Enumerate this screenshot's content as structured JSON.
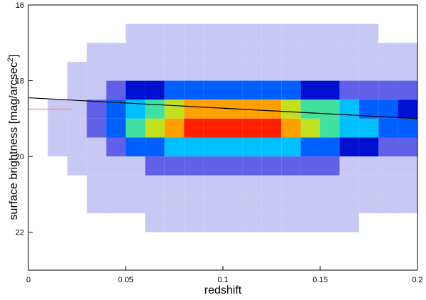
{
  "chart_data": {
    "type": "heatmap",
    "xlabel": "redshift",
    "ylabel": {
      "text": "surface brightness [mag/arcsec",
      "sup": "2",
      "end": "]"
    },
    "xlim": [
      0,
      0.2
    ],
    "ylim": [
      16,
      23
    ],
    "y_inverted": true,
    "xticks": [
      0,
      0.05,
      0.1,
      0.15,
      0.2
    ],
    "yticks": [
      16,
      18,
      20,
      22
    ],
    "xbins": [
      0,
      0.01,
      0.02,
      0.03,
      0.04,
      0.05,
      0.06,
      0.07,
      0.08,
      0.09,
      0.1,
      0.11,
      0.12,
      0.13,
      0.14,
      0.15,
      0.16,
      0.17,
      0.18,
      0.19,
      0.2
    ],
    "ybins": [
      16,
      16.5,
      17,
      17.5,
      18,
      18.5,
      19,
      19.5,
      20,
      20.5,
      21,
      21.5,
      22,
      22.5,
      23
    ],
    "z": [
      [
        0,
        0,
        0,
        0,
        0,
        0,
        0,
        0,
        0,
        0,
        0,
        0,
        0,
        0,
        0,
        0,
        0,
        0,
        0,
        0
      ],
      [
        0,
        0,
        0,
        0,
        0,
        1,
        1,
        1,
        1,
        1,
        1,
        1,
        1,
        1,
        1,
        1,
        1,
        1,
        0,
        0
      ],
      [
        0,
        0,
        0,
        1,
        2,
        3,
        3,
        4,
        4,
        4,
        4,
        4,
        4,
        4,
        3,
        3,
        2,
        2,
        2,
        2
      ],
      [
        0,
        0,
        1,
        3,
        7,
        10,
        12,
        14,
        14,
        15,
        15,
        15,
        14,
        14,
        12,
        11,
        9,
        8,
        7,
        6
      ],
      [
        0,
        0,
        2,
        9,
        20,
        29,
        36,
        41,
        43,
        45,
        45,
        44,
        43,
        41,
        36,
        32,
        27,
        23,
        20,
        18
      ],
      [
        0,
        1,
        5,
        18,
        41,
        59,
        72,
        81,
        86,
        90,
        90,
        88,
        86,
        81,
        72,
        63,
        54,
        45,
        41,
        36
      ],
      [
        0,
        1,
        5,
        20,
        45,
        65,
        80,
        90,
        95,
        100,
        100,
        98,
        95,
        90,
        80,
        70,
        60,
        50,
        45,
        40
      ],
      [
        0,
        1,
        3,
        12,
        27,
        39,
        48,
        54,
        57,
        60,
        60,
        59,
        57,
        54,
        48,
        42,
        36,
        30,
        27,
        24
      ],
      [
        0,
        0,
        1,
        5,
        11,
        16,
        20,
        23,
        24,
        25,
        25,
        25,
        24,
        23,
        20,
        18,
        15,
        13,
        11,
        10
      ],
      [
        0,
        0,
        0,
        2,
        4,
        5,
        6,
        7,
        8,
        8,
        8,
        8,
        8,
        7,
        6,
        6,
        5,
        4,
        4,
        3
      ],
      [
        0,
        0,
        0,
        1,
        1,
        2,
        2,
        3,
        3,
        3,
        3,
        3,
        3,
        3,
        2,
        2,
        2,
        2,
        1,
        1
      ],
      [
        0,
        0,
        0,
        0,
        0,
        0,
        1,
        1,
        1,
        1,
        1,
        1,
        1,
        1,
        1,
        1,
        1,
        0,
        0,
        0
      ],
      [
        0,
        0,
        0,
        0,
        0,
        0,
        0,
        0,
        0,
        0,
        0,
        0,
        0,
        0,
        0,
        0,
        0,
        0,
        0,
        0
      ],
      [
        0,
        0,
        0,
        0,
        0,
        0,
        0,
        0,
        0,
        0,
        0,
        0,
        0,
        0,
        0,
        0,
        0,
        0,
        0,
        0
      ]
    ],
    "colormap": [
      "#ffffff",
      "#c8c8f4",
      "#6060e8",
      "#0010d0",
      "#0060ff",
      "#00c0ff",
      "#40e0a0",
      "#c0e020",
      "#ffa000",
      "#ff2000"
    ],
    "lines": [
      {
        "color": "#000000",
        "x": [
          0,
          0.2
        ],
        "y": [
          18.45,
          19.0
        ]
      },
      {
        "color": "#ff8080",
        "x": [
          0,
          0.022
        ],
        "y": [
          18.75,
          18.75
        ]
      }
    ]
  }
}
